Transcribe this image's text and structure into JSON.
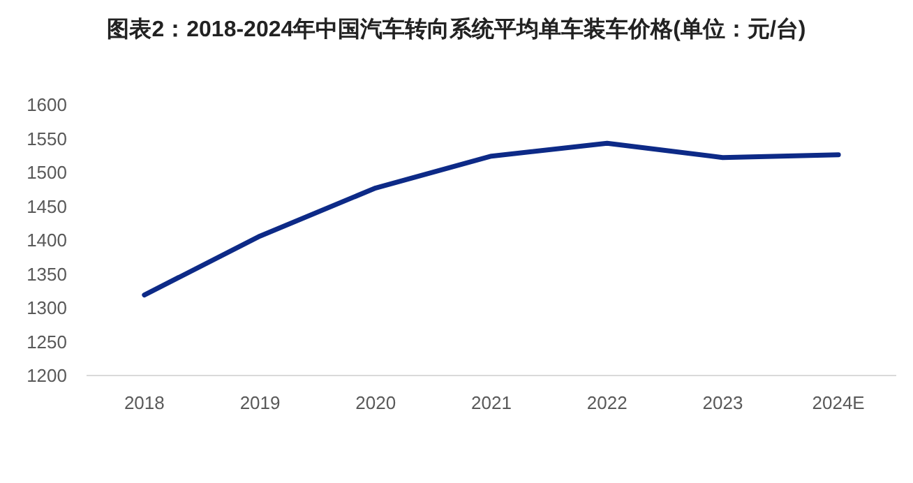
{
  "chart_data": {
    "type": "line",
    "title": "图表2：2018-2024年中国汽车转向系统平均单车装车价格(单位：元/台)",
    "categories": [
      "2018",
      "2019",
      "2020",
      "2021",
      "2022",
      "2023",
      "2024E"
    ],
    "series": [
      {
        "color": "#0d2a87",
        "values": [
          1319,
          1406,
          1477,
          1524,
          1543,
          1522,
          1526
        ]
      }
    ],
    "ylim": [
      1200,
      1600
    ],
    "yticks": [
      1200,
      1250,
      1300,
      1350,
      1400,
      1450,
      1500,
      1550,
      1600
    ]
  }
}
